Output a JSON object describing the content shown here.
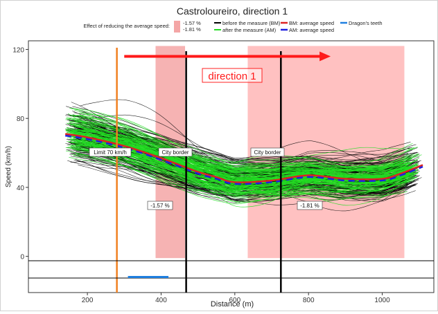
{
  "chart_data": {
    "type": "line",
    "title": "Castroloureiro, direction 1",
    "xlabel": "Distance (m)",
    "ylabel": "Speed (km/h)",
    "xlim": [
      40,
      1140
    ],
    "ylim": [
      -21,
      125
    ],
    "x_ticks": [
      200,
      400,
      600,
      800,
      1000
    ],
    "y_ticks": [
      0,
      40,
      80,
      120
    ],
    "legend": {
      "effect_label": "Effect of reducing the average speed:",
      "effect_values": [
        "-1.57 %",
        "-1.81 %"
      ],
      "colors": {
        "effect": "#f4a6a6",
        "bm": "#000000",
        "am": "#22dd22",
        "bm_avg": "#dd2222",
        "am_avg": "#1f1fe0",
        "teeth": "#1e7fe0"
      },
      "entries": [
        {
          "label": "before the measure (BM)",
          "color": "#000000"
        },
        {
          "label": "after the measure (AM)",
          "color": "#22dd22"
        },
        {
          "label": "BM: average speed",
          "color": "#dd2222"
        },
        {
          "label": "AM: average speed",
          "color": "#1f1fe0"
        },
        {
          "label": "Dragon's teeth",
          "color": "#1e7fe0"
        }
      ]
    },
    "zones": [
      {
        "x_start": 385,
        "x_end": 465,
        "effect": "-1.57 %"
      },
      {
        "x_start": 635,
        "x_end": 1060,
        "effect": "-1.81 %"
      }
    ],
    "vlines": [
      {
        "x": 280,
        "color": "#f08020",
        "label": "Limit 70 km/h"
      },
      {
        "x": 468,
        "color": "#000000",
        "label": "City border"
      },
      {
        "x": 725,
        "color": "#000000",
        "label": "City border"
      }
    ],
    "dragons_teeth": {
      "x_start": 310,
      "x_end": 420,
      "y": -12
    },
    "direction_label": "direction 1",
    "direction_arrow": {
      "x_start": 300,
      "x_end": 860,
      "y": 116,
      "color": "#ff1a1a"
    },
    "series": [
      {
        "name": "BM: average speed",
        "x": [
          140,
          200,
          300,
          400,
          500,
          550,
          600,
          700,
          800,
          900,
          1000,
          1050,
          1110
        ],
        "values": [
          71,
          69,
          64,
          57,
          49,
          46,
          43,
          44,
          47,
          45,
          45,
          48,
          53
        ]
      },
      {
        "name": "AM: average speed",
        "x": [
          140,
          200,
          300,
          400,
          500,
          550,
          600,
          700,
          800,
          900,
          1000,
          1050,
          1110
        ],
        "values": [
          70,
          68,
          63,
          56,
          48,
          45,
          42,
          43,
          46,
          44,
          44,
          47,
          52
        ]
      }
    ],
    "curve_range": [
      140,
      1110
    ]
  }
}
